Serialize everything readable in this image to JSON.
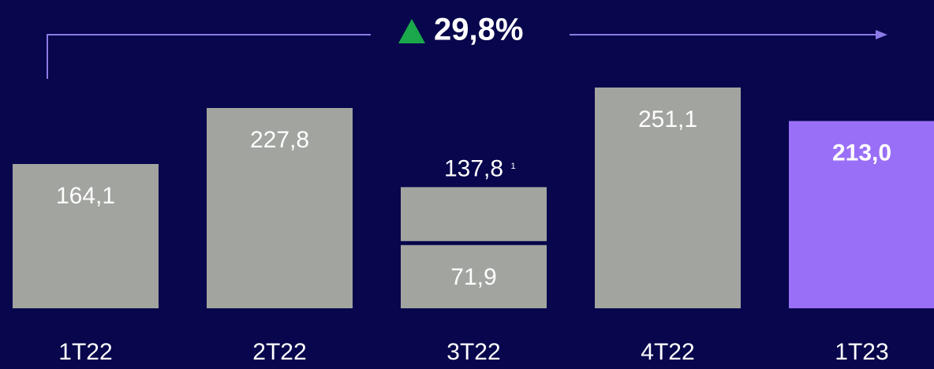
{
  "chart_data": {
    "type": "bar",
    "categories": [
      "1T22",
      "2T22",
      "3T22",
      "4T22",
      "1T23"
    ],
    "series": [
      {
        "values": [
          164.1,
          227.8,
          71.9,
          251.1,
          213.0
        ],
        "value_labels": [
          "164,1",
          "227,8",
          "71,9",
          "251,1",
          "213,0"
        ],
        "colors": [
          "#a2a49f",
          "#a2a49f",
          "#a2a49f",
          "#a2a49f",
          "#9a6ff7"
        ],
        "label_weights": [
          "normal",
          "normal",
          "normal",
          "normal",
          "bold"
        ]
      },
      {
        "values": [
          null,
          null,
          65.9,
          null,
          null
        ],
        "colors": [
          null,
          null,
          "#a2a49f",
          null,
          null
        ]
      }
    ],
    "stack_total_label": "137,8",
    "stack_total_note": "1",
    "growth_label": "29,8%",
    "growth_color": "#1aa84b",
    "arrow_color": "#8b7be6"
  }
}
